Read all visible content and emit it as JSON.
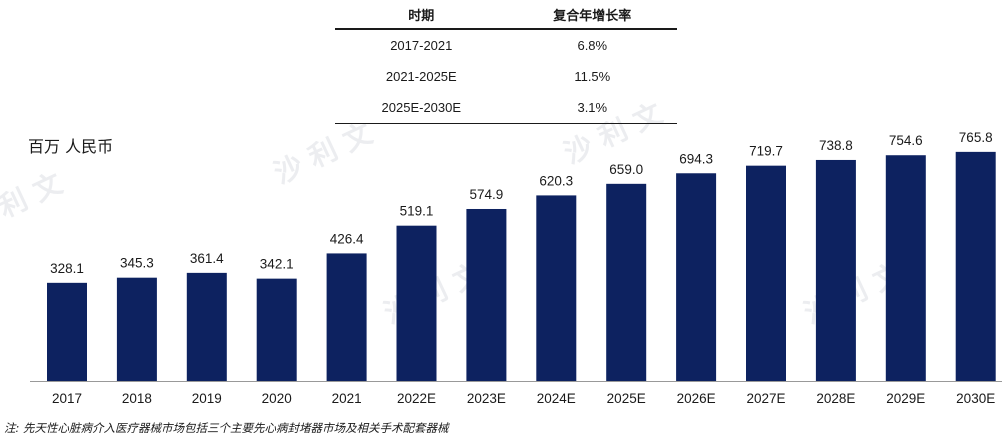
{
  "cagr_table": {
    "headers": [
      "时期",
      "复合年增长率"
    ],
    "rows": [
      [
        "2017-2021",
        "6.8%"
      ],
      [
        "2021-2025E",
        "11.5%"
      ],
      [
        "2025E-2030E",
        "3.1%"
      ]
    ]
  },
  "unit_label": "百万 人民币",
  "footnote": "注: 先天性心脏病介入医疗器械市场包括三个主要先心病封堵器市场及相关手术配套器械",
  "watermark_text": "沙利文",
  "colors": {
    "bar": "#0d2260",
    "axis": "#999999"
  },
  "chart_data": {
    "type": "bar",
    "categories": [
      "2017",
      "2018",
      "2019",
      "2020",
      "2021",
      "2022E",
      "2023E",
      "2024E",
      "2025E",
      "2026E",
      "2027E",
      "2028E",
      "2029E",
      "2030E"
    ],
    "values": [
      328.1,
      345.3,
      361.4,
      342.1,
      426.4,
      519.1,
      574.9,
      620.3,
      659.0,
      694.3,
      719.7,
      738.8,
      754.6,
      765.8
    ],
    "value_labels": [
      "328.1",
      "345.3",
      "361.4",
      "342.1",
      "426.4",
      "519.1",
      "574.9",
      "620.3",
      "659.0",
      "694.3",
      "719.7",
      "738.8",
      "754.6",
      "765.8"
    ],
    "ylim": [
      0,
      900
    ],
    "grid": false
  }
}
